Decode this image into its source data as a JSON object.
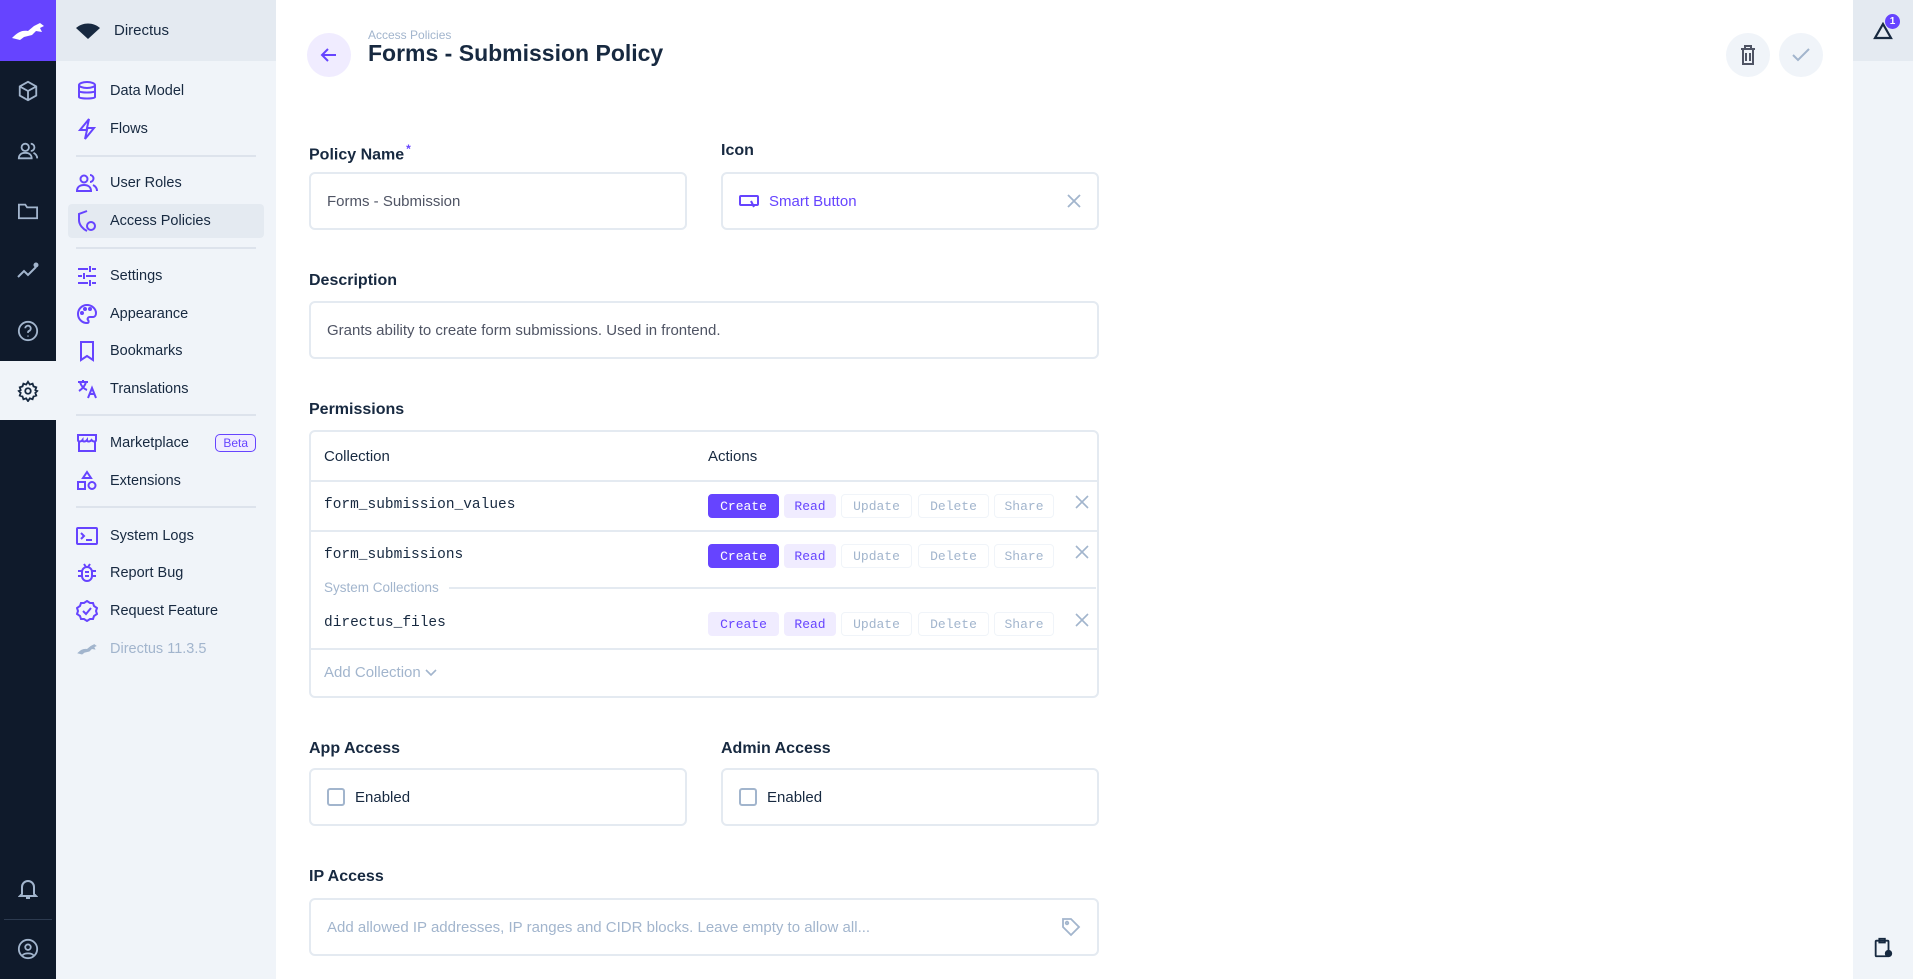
{
  "app": {
    "project_name": "Directus",
    "version": "Directus 11.3.5",
    "accent": "#6644ff"
  },
  "rail": {
    "items": [
      "content",
      "user-directory",
      "files",
      "insights",
      "help",
      "settings"
    ],
    "active": "settings"
  },
  "nav": {
    "items": [
      {
        "label": "Data Model",
        "icon": "database-icon"
      },
      {
        "label": "Flows",
        "icon": "bolt-icon"
      },
      {
        "label": "User Roles",
        "icon": "users-icon"
      },
      {
        "label": "Access Policies",
        "icon": "shield-icon",
        "active": true
      },
      {
        "label": "Settings",
        "icon": "tune-icon"
      },
      {
        "label": "Appearance",
        "icon": "palette-icon"
      },
      {
        "label": "Bookmarks",
        "icon": "bookmark-icon"
      },
      {
        "label": "Translations",
        "icon": "translate-icon"
      },
      {
        "label": "Marketplace",
        "icon": "store-icon",
        "badge": "Beta"
      },
      {
        "label": "Extensions",
        "icon": "extension-icon"
      },
      {
        "label": "System Logs",
        "icon": "terminal-icon"
      },
      {
        "label": "Report Bug",
        "icon": "bug-icon"
      },
      {
        "label": "Request Feature",
        "icon": "verified-icon"
      }
    ]
  },
  "header": {
    "breadcrumb": "Access Policies",
    "title": "Forms - Submission Policy"
  },
  "notifications": {
    "count": "1"
  },
  "form": {
    "policy_name": {
      "label": "Policy Name",
      "required": "*",
      "value": "Forms - Submission"
    },
    "icon": {
      "label": "Icon",
      "value": "Smart Button"
    },
    "description": {
      "label": "Description",
      "value": "Grants ability to create form submissions. Used in frontend."
    },
    "permissions": {
      "label": "Permissions",
      "col_collection": "Collection",
      "col_actions": "Actions",
      "actions": [
        "Create",
        "Read",
        "Update",
        "Delete",
        "Share"
      ],
      "rows": [
        {
          "collection": "form_submission_values",
          "states": [
            "full",
            "part",
            "none",
            "none",
            "none"
          ]
        },
        {
          "collection": "form_submissions",
          "states": [
            "full",
            "part",
            "none",
            "none",
            "none"
          ]
        },
        {
          "collection": "directus_files",
          "states": [
            "part",
            "part",
            "none",
            "none",
            "none"
          ]
        }
      ],
      "system_label": "System Collections",
      "add_label": "Add Collection"
    },
    "app_access": {
      "label": "App Access",
      "option": "Enabled",
      "checked": false
    },
    "admin_access": {
      "label": "Admin Access",
      "option": "Enabled",
      "checked": false
    },
    "ip_access": {
      "label": "IP Access",
      "placeholder": "Add allowed IP addresses, IP ranges and CIDR blocks. Leave empty to allow all..."
    }
  }
}
